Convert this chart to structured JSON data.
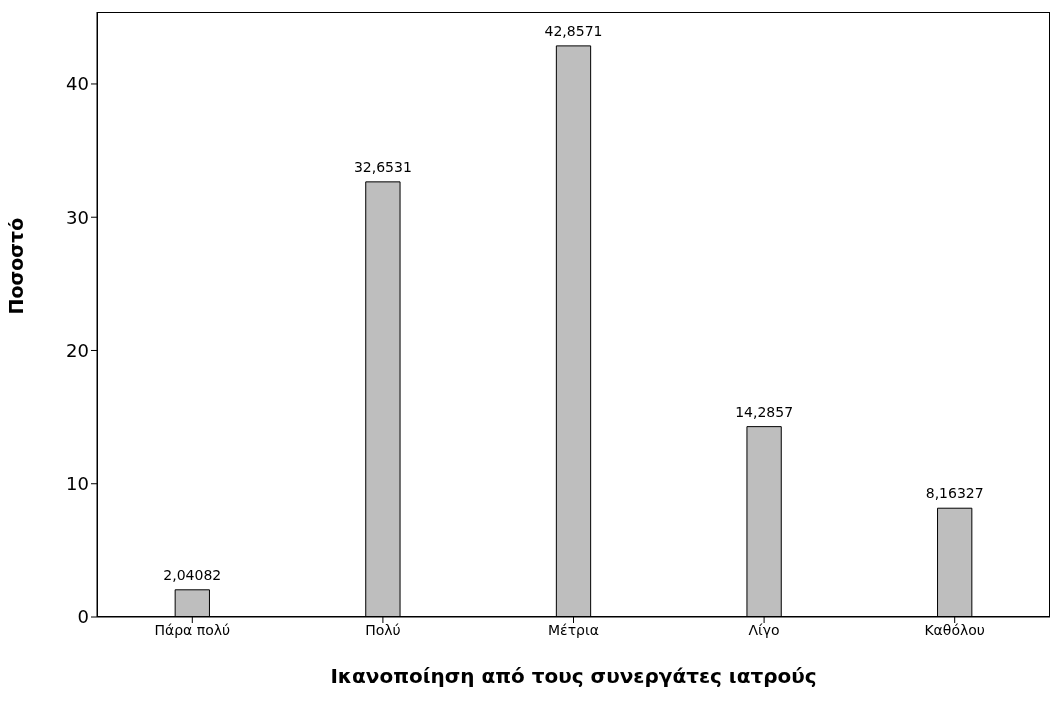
{
  "chart_data": {
    "type": "bar",
    "xlabel": "Ικανοποίηση από τους συνεργάτες ιατρούς",
    "ylabel": "Ποσοστό",
    "categories": [
      "Πάρα πολύ",
      "Πολύ",
      "Μέτρια",
      "Λίγο",
      "Καθόλου"
    ],
    "values": [
      2.04082,
      32.6531,
      42.8571,
      14.2857,
      8.16327
    ],
    "value_labels": [
      "2,04082",
      "32,6531",
      "42,8571",
      "14,2857",
      "8,16327"
    ],
    "color": "#bebebe",
    "ylim": [
      0,
      45.4
    ],
    "yticks": [
      0,
      10,
      20,
      30,
      40
    ],
    "grid": false,
    "legend": false
  }
}
